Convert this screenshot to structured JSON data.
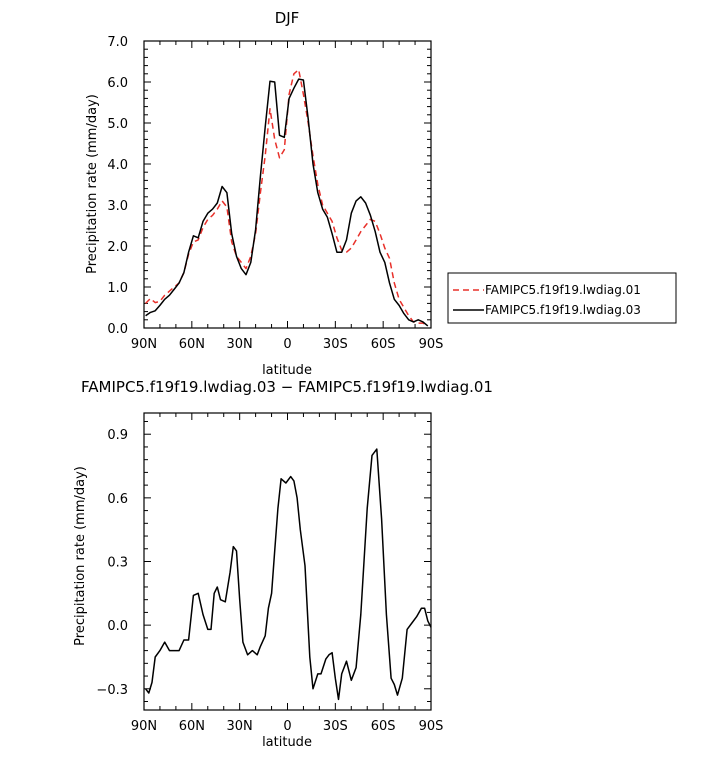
{
  "chart_data": [
    {
      "type": "line",
      "title": "DJF",
      "xlabel": "latitude",
      "ylabel": "Precipitation rate (mm/day)",
      "xlim": [
        90,
        -90
      ],
      "ylim": [
        0,
        7
      ],
      "x_ticks": [
        90,
        60,
        30,
        0,
        -30,
        -60,
        -90
      ],
      "x_tick_labels": [
        "90N",
        "60N",
        "30N",
        "0",
        "30S",
        "60S",
        "90S"
      ],
      "y_ticks": [
        0,
        1,
        2,
        3,
        4,
        5,
        6,
        7
      ],
      "y_tick_labels": [
        "0.0",
        "1.0",
        "2.0",
        "3.0",
        "4.0",
        "5.0",
        "6.0",
        "7.0"
      ],
      "grid": false,
      "legend_position": "outside-right",
      "series": [
        {
          "name": "FAMIPC5.f19f19.lwdiag.01",
          "color": "#e8302a",
          "dash": "dashed",
          "x": [
            89,
            86,
            83,
            80,
            77,
            74,
            71,
            68,
            65,
            62,
            59,
            56,
            53,
            50,
            47,
            44,
            41,
            38,
            35,
            32,
            29,
            26,
            23,
            20,
            17,
            14,
            11,
            8,
            5,
            2,
            -1,
            -4,
            -7,
            -10,
            -13,
            -16,
            -19,
            -22,
            -25,
            -28,
            -31,
            -34,
            -37,
            -40,
            -43,
            -46,
            -49,
            -52,
            -55,
            -58,
            -61,
            -64,
            -67,
            -70,
            -73,
            -76,
            -79,
            -82,
            -85,
            -88
          ],
          "y": [
            0.6,
            0.72,
            0.62,
            0.65,
            0.8,
            0.9,
            1.0,
            1.1,
            1.35,
            1.8,
            2.1,
            2.15,
            2.45,
            2.65,
            2.75,
            2.9,
            3.1,
            2.95,
            2.1,
            1.75,
            1.6,
            1.45,
            1.75,
            2.3,
            3.3,
            4.2,
            5.35,
            4.6,
            4.15,
            4.35,
            5.7,
            6.2,
            6.3,
            5.7,
            5.0,
            4.2,
            3.5,
            3.0,
            2.8,
            2.6,
            2.2,
            1.9,
            1.85,
            1.95,
            2.15,
            2.35,
            2.5,
            2.65,
            2.6,
            2.3,
            1.95,
            1.7,
            1.1,
            0.7,
            0.5,
            0.3,
            0.15,
            0.12,
            0.12,
            0.05
          ]
        },
        {
          "name": "FAMIPC5.f19f19.lwdiag.03",
          "color": "#000000",
          "dash": "solid",
          "x": [
            89,
            86,
            83,
            80,
            77,
            74,
            71,
            68,
            65,
            62,
            59,
            56,
            53,
            50,
            47,
            44,
            41,
            38,
            35,
            32,
            29,
            26,
            23,
            20,
            17,
            14,
            11,
            8,
            5,
            2,
            -1,
            -4,
            -7,
            -10,
            -13,
            -16,
            -19,
            -22,
            -25,
            -28,
            -31,
            -34,
            -37,
            -40,
            -43,
            -46,
            -49,
            -52,
            -55,
            -58,
            -61,
            -64,
            -67,
            -70,
            -73,
            -76,
            -79,
            -82,
            -85,
            -88
          ],
          "y": [
            0.3,
            0.38,
            0.42,
            0.55,
            0.7,
            0.8,
            0.95,
            1.1,
            1.35,
            1.85,
            2.25,
            2.2,
            2.6,
            2.8,
            2.9,
            3.05,
            3.45,
            3.3,
            2.3,
            1.75,
            1.45,
            1.3,
            1.6,
            2.4,
            3.7,
            4.9,
            6.02,
            6.0,
            4.7,
            4.65,
            5.6,
            5.85,
            6.07,
            6.05,
            5.1,
            4.0,
            3.3,
            2.9,
            2.7,
            2.3,
            1.85,
            1.85,
            2.15,
            2.8,
            3.1,
            3.2,
            3.05,
            2.75,
            2.35,
            1.85,
            1.6,
            1.1,
            0.7,
            0.55,
            0.35,
            0.2,
            0.15,
            0.2,
            0.15,
            0.05
          ]
        }
      ]
    },
    {
      "type": "line",
      "title": "FAMIPC5.f19f19.lwdiag.03 − FAMIPC5.f19f19.lwdiag.01",
      "xlabel": "latitude",
      "ylabel": "Precipitation rate (mm/day)",
      "xlim": [
        90,
        -90
      ],
      "ylim": [
        -0.4,
        1.0
      ],
      "x_ticks": [
        90,
        60,
        30,
        0,
        -30,
        -60,
        -90
      ],
      "x_tick_labels": [
        "90N",
        "60N",
        "30N",
        "0",
        "30S",
        "60S",
        "90S"
      ],
      "y_ticks": [
        -0.3,
        0,
        0.3,
        0.6,
        0.9
      ],
      "y_tick_labels": [
        "−0.3",
        "0.0",
        "0.3",
        "0.6",
        "0.9"
      ],
      "grid": false,
      "series": [
        {
          "color": "#000000",
          "dash": "solid",
          "x": [
            89,
            87,
            85,
            83,
            80,
            77,
            74,
            71,
            68,
            65,
            62,
            59,
            56,
            53,
            50,
            48,
            46,
            44,
            42,
            39,
            36,
            34,
            32,
            30,
            28,
            25,
            22,
            19,
            17,
            14,
            12,
            10,
            8,
            6,
            4,
            1,
            -2,
            -4,
            -6,
            -8,
            -11,
            -14,
            -16,
            -19,
            -21,
            -24,
            -26,
            -28,
            -30,
            -32,
            -34,
            -37,
            -40,
            -43,
            -46,
            -48,
            -50,
            -53,
            -56,
            -59,
            -62,
            -65,
            -67,
            -69,
            -72,
            -75,
            -78,
            -81,
            -84,
            -86,
            -88,
            -90
          ],
          "y": [
            -0.3,
            -0.32,
            -0.27,
            -0.15,
            -0.12,
            -0.08,
            -0.12,
            -0.12,
            -0.12,
            -0.07,
            -0.07,
            0.14,
            0.15,
            0.05,
            -0.02,
            -0.02,
            0.15,
            0.18,
            0.12,
            0.11,
            0.25,
            0.37,
            0.35,
            0.12,
            -0.08,
            -0.14,
            -0.12,
            -0.14,
            -0.1,
            -0.05,
            0.08,
            0.15,
            0.35,
            0.55,
            0.69,
            0.67,
            0.7,
            0.68,
            0.6,
            0.45,
            0.28,
            -0.15,
            -0.3,
            -0.23,
            -0.23,
            -0.16,
            -0.14,
            -0.13,
            -0.25,
            -0.35,
            -0.23,
            -0.17,
            -0.26,
            -0.2,
            0.05,
            0.3,
            0.55,
            0.8,
            0.83,
            0.5,
            0.05,
            -0.25,
            -0.28,
            -0.33,
            -0.25,
            -0.02,
            0.01,
            0.04,
            0.08,
            0.08,
            0.02,
            -0.01
          ]
        }
      ]
    }
  ]
}
